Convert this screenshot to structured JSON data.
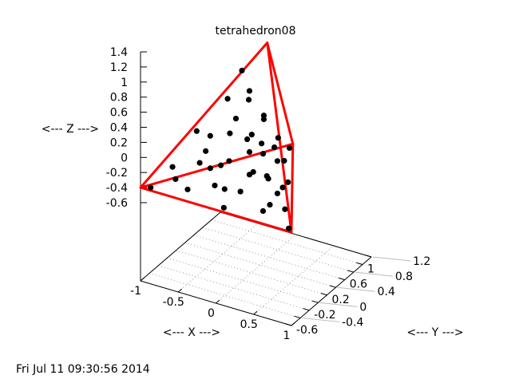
{
  "chart_data": {
    "type": "scatter3d",
    "title": "tetrahedron08",
    "xlabel": "<--- X --->",
    "ylabel": "<--- Y --->",
    "zlabel": "<--- Z --->",
    "xlim": [
      -1,
      1
    ],
    "ylim": [
      -0.6,
      1.2
    ],
    "zlim": [
      -0.6,
      1.4
    ],
    "x_ticks": [
      "-1",
      "-0.5",
      "0",
      "0.5",
      "1"
    ],
    "x_tick_values": [
      -1,
      -0.5,
      0,
      0.5,
      1
    ],
    "y_ticks": [
      "-0.6",
      "-0.4",
      "-0.2",
      "0",
      "0.2",
      "0.4",
      "0.6",
      "0.8",
      "1",
      "1.2"
    ],
    "y_tick_values": [
      -0.6,
      -0.4,
      -0.2,
      0,
      0.2,
      0.4,
      0.6,
      0.8,
      1,
      1.2
    ],
    "z_ticks": [
      "1.4",
      "1.2",
      "1",
      "0.8",
      "0.6",
      "0.4",
      "0.2",
      "0",
      "-0.2",
      "-0.4",
      "-0.6"
    ],
    "z_tick_values": [
      1.4,
      1.2,
      1,
      0.8,
      0.6,
      0.4,
      0.2,
      0,
      -0.2,
      -0.4,
      -0.6
    ],
    "grid": true,
    "edge_color": "#ff0000",
    "point_color": "#000000",
    "tetrahedron_vertices": [
      [
        -1,
        -0.6,
        -0.4
      ],
      [
        1,
        -0.6,
        -0.4
      ],
      [
        0,
        1.132,
        -0.4
      ],
      [
        0,
        0.555,
        1.233
      ]
    ],
    "tetrahedron_edges": [
      [
        0,
        1
      ],
      [
        0,
        2
      ],
      [
        0,
        3
      ],
      [
        1,
        2
      ],
      [
        1,
        3
      ],
      [
        2,
        3
      ]
    ],
    "points": [
      [
        0.05,
        -0.1,
        1.21
      ],
      [
        0.15,
        -0.1,
        0.97
      ],
      [
        -0.14,
        -0.1,
        0.78
      ],
      [
        0.14,
        -0.1,
        0.85
      ],
      [
        0.34,
        -0.1,
        0.7
      ],
      [
        0.34,
        -0.1,
        0.65
      ],
      [
        -0.03,
        -0.1,
        0.55
      ],
      [
        -0.55,
        -0.1,
        0.23
      ],
      [
        -0.37,
        -0.1,
        0.22
      ],
      [
        -0.11,
        -0.1,
        0.33
      ],
      [
        0.18,
        -0.1,
        0.4
      ],
      [
        0.12,
        -0.1,
        0.32
      ],
      [
        0.53,
        -0.1,
        0.46
      ],
      [
        0.31,
        -0.1,
        0.32
      ],
      [
        0.48,
        -0.1,
        0.32
      ],
      [
        0.68,
        -0.1,
        0.37
      ],
      [
        -0.43,
        -0.1,
        0.0
      ],
      [
        0.15,
        -0.1,
        0.16
      ],
      [
        0.33,
        -0.1,
        0.19
      ],
      [
        -0.87,
        -0.1,
        -0.34
      ],
      [
        -0.51,
        -0.1,
        -0.18
      ],
      [
        -0.12,
        -0.1,
        -0.04
      ],
      [
        -0.23,
        -0.1,
        -0.13
      ],
      [
        -0.37,
        -0.1,
        -0.21
      ],
      [
        0.52,
        -0.1,
        0.15
      ],
      [
        0.61,
        -0.1,
        0.18
      ],
      [
        -0.83,
        -0.1,
        -0.49
      ],
      [
        -1.16,
        -0.1,
        -0.7
      ],
      [
        0.15,
        -0.1,
        -0.14
      ],
      [
        0.2,
        -0.1,
        -0.09
      ],
      [
        0.38,
        -0.1,
        -0.09
      ],
      [
        0.4,
        -0.1,
        -0.12
      ],
      [
        0.66,
        -0.1,
        -0.09
      ],
      [
        0.59,
        -0.1,
        -0.18
      ],
      [
        -0.67,
        -0.1,
        -0.58
      ],
      [
        -0.31,
        -0.1,
        -0.42
      ],
      [
        -0.18,
        -0.1,
        -0.43
      ],
      [
        0.03,
        -0.1,
        -0.4
      ],
      [
        0.52,
        -0.1,
        -0.28
      ],
      [
        0.42,
        -0.1,
        -0.46
      ],
      [
        0.33,
        -0.1,
        -0.57
      ],
      [
        0.62,
        -0.1,
        -0.46
      ],
      [
        -0.19,
        -0.1,
        -0.68
      ],
      [
        0.67,
        -0.1,
        -0.7
      ]
    ]
  },
  "timestamp": "Fri Jul 11 09:30:56 2014"
}
